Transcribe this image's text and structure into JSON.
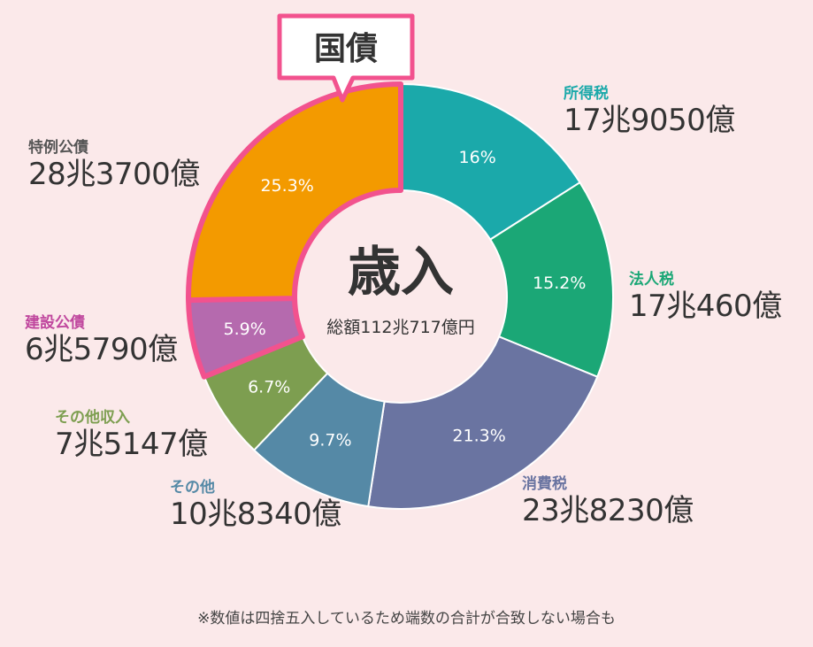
{
  "chart_data": {
    "type": "donut",
    "center_title": "歳入",
    "center_subtitle": "総額112兆717億円",
    "callout": "国債",
    "slices": [
      {
        "name": "所得税",
        "amount": "17兆9050億",
        "percent": 16.0,
        "label": "16%",
        "color": "#1ba9aa",
        "name_color": "#1ba9aa"
      },
      {
        "name": "法人税",
        "amount": "17兆460億",
        "percent": 15.2,
        "label": "15.2%",
        "color": "#1ba776",
        "name_color": "#1ba776"
      },
      {
        "name": "消費税",
        "amount": "23兆8230億",
        "percent": 21.3,
        "label": "21.3%",
        "color": "#6a74a1",
        "name_color": "#6a74a1"
      },
      {
        "name": "その他",
        "amount": "10兆8340億",
        "percent": 9.7,
        "label": "9.7%",
        "color": "#5589a6",
        "name_color": "#5589a6"
      },
      {
        "name": "その他収入",
        "amount": "7兆5147億",
        "percent": 6.7,
        "label": "6.7%",
        "color": "#7d9e50",
        "name_color": "#7d9e50"
      },
      {
        "name": "建設公債",
        "amount": "6兆5790億",
        "percent": 5.9,
        "label": "5.9%",
        "color": "#b56aae",
        "name_color": "#c0479e"
      },
      {
        "name": "特例公債",
        "amount": "28兆3700億",
        "percent": 25.3,
        "label": "25.3%",
        "color": "#f39a00",
        "name_color": "#555555"
      }
    ],
    "highlight_color": "#f2528e"
  },
  "footnote": "※数値は四捨五入しているため端数の合計が合致しない場合も"
}
